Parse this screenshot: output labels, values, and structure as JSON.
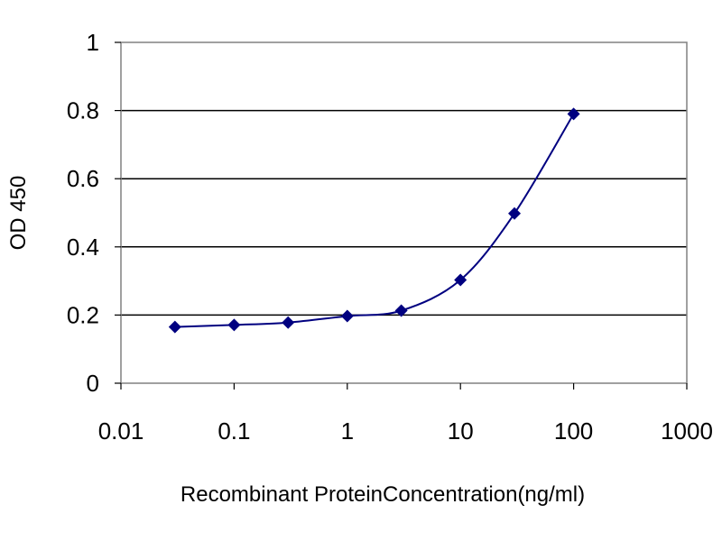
{
  "chart_data": {
    "type": "line",
    "title": "",
    "xlabel": "Recombinant ProteinConcentration(ng/ml)",
    "ylabel": "OD 450",
    "xscale": "log",
    "xlim": [
      0.01,
      1000
    ],
    "ylim": [
      0,
      1
    ],
    "grid": "horizontal",
    "legend": "none",
    "x_ticks": [
      "0.01",
      "0.1",
      "1",
      "10",
      "100",
      "1000"
    ],
    "y_ticks": [
      "0",
      "0.2",
      "0.4",
      "0.6",
      "0.8",
      "1"
    ],
    "series": [
      {
        "color": "#000080",
        "marker": "diamond",
        "x": [
          0.03,
          0.1,
          0.3,
          1,
          3,
          10,
          30,
          100
        ],
        "y": [
          0.165,
          0.171,
          0.178,
          0.197,
          0.213,
          0.303,
          0.498,
          0.79
        ]
      }
    ],
    "plot_background": "#ffffff",
    "gridline_color": "#000000"
  }
}
